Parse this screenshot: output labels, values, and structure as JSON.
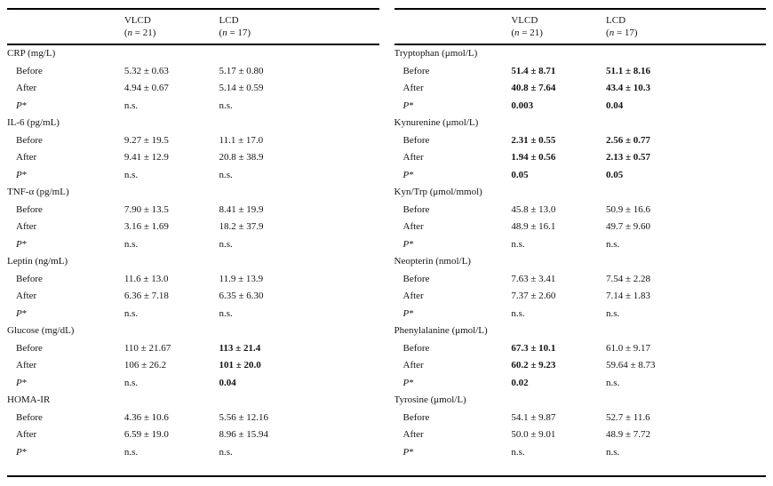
{
  "page": {
    "background_color": "#ffffff",
    "text_color": "#141414",
    "rule_color": "#000000"
  },
  "tables": [
    {
      "name": "inflammation-metabolic-parameters-table",
      "columns": [
        {
          "label": "VLCD",
          "sub_pre": "(",
          "sub_var": "n",
          "sub_post": " = 21)"
        },
        {
          "label": "LCD",
          "sub_pre": "(",
          "sub_var": "n",
          "sub_post": " = 17)"
        }
      ],
      "sections": [
        {
          "label": "CRP (mg/L)",
          "rows": [
            {
              "label": "Before",
              "cells": [
                {
                  "text": "5.32 ± 0.63",
                  "bold": false
                },
                {
                  "text": "5.17 ± 0.80",
                  "bold": false
                }
              ]
            },
            {
              "label": "After",
              "cells": [
                {
                  "text": "4.94 ± 0.67",
                  "bold": false
                },
                {
                  "text": "5.14 ± 0.59",
                  "bold": false
                }
              ]
            },
            {
              "label_var": "P",
              "label_post": "*",
              "cells": [
                {
                  "text": "n.s.",
                  "bold": false
                },
                {
                  "text": "n.s.",
                  "bold": false
                }
              ]
            }
          ]
        },
        {
          "label": "IL-6 (pg/mL)",
          "rows": [
            {
              "label": "Before",
              "cells": [
                {
                  "text": "9.27 ± 19.5",
                  "bold": false
                },
                {
                  "text": "11.1 ± 17.0",
                  "bold": false
                }
              ]
            },
            {
              "label": "After",
              "cells": [
                {
                  "text": "9.41 ± 12.9",
                  "bold": false
                },
                {
                  "text": "20.8 ± 38.9",
                  "bold": false
                }
              ]
            },
            {
              "label_var": "P",
              "label_post": "*",
              "cells": [
                {
                  "text": "n.s.",
                  "bold": false
                },
                {
                  "text": "n.s.",
                  "bold": false
                }
              ]
            }
          ]
        },
        {
          "label": "TNF-α (pg/mL)",
          "rows": [
            {
              "label": "Before",
              "cells": [
                {
                  "text": "7.90 ± 13.5",
                  "bold": false
                },
                {
                  "text": "8.41 ± 19.9",
                  "bold": false
                }
              ]
            },
            {
              "label": "After",
              "cells": [
                {
                  "text": "3.16 ± 1.69",
                  "bold": false
                },
                {
                  "text": "18.2 ± 37.9",
                  "bold": false
                }
              ]
            },
            {
              "label_var": "P",
              "label_post": "*",
              "cells": [
                {
                  "text": "n.s.",
                  "bold": false
                },
                {
                  "text": "n.s.",
                  "bold": false
                }
              ]
            }
          ]
        },
        {
          "label": "Leptin (ng/mL)",
          "rows": [
            {
              "label": "Before",
              "cells": [
                {
                  "text": "11.6 ± 13.0",
                  "bold": false
                },
                {
                  "text": "11.9 ± 13.9",
                  "bold": false
                }
              ]
            },
            {
              "label": "After",
              "cells": [
                {
                  "text": "6.36 ± 7.18",
                  "bold": false
                },
                {
                  "text": "6.35 ± 6.30",
                  "bold": false
                }
              ]
            },
            {
              "label_var": "P",
              "label_post": "*",
              "cells": [
                {
                  "text": "n.s.",
                  "bold": false
                },
                {
                  "text": "n.s.",
                  "bold": false
                }
              ]
            }
          ]
        },
        {
          "label": "Glucose (mg/dL)",
          "rows": [
            {
              "label": "Before",
              "cells": [
                {
                  "text": "110 ± 21.67",
                  "bold": false
                },
                {
                  "text": "113 ± 21.4",
                  "bold": true
                }
              ]
            },
            {
              "label": "After",
              "cells": [
                {
                  "text": "106 ± 26.2",
                  "bold": false
                },
                {
                  "text": "101 ± 20.0",
                  "bold": true
                }
              ]
            },
            {
              "label_var": "P",
              "label_post": "*",
              "cells": [
                {
                  "text": "n.s.",
                  "bold": false
                },
                {
                  "text": "0.04",
                  "bold": true
                }
              ]
            }
          ]
        },
        {
          "label": "HOMA-IR",
          "rows": [
            {
              "label": "Before",
              "cells": [
                {
                  "text": "4.36 ± 10.6",
                  "bold": false
                },
                {
                  "text": "5.56 ± 12.16",
                  "bold": false
                }
              ]
            },
            {
              "label": "After",
              "cells": [
                {
                  "text": "6.59 ± 19.0",
                  "bold": false
                },
                {
                  "text": "8.96 ± 15.94",
                  "bold": false
                }
              ]
            },
            {
              "label_var": "P",
              "label_post": "*",
              "cells": [
                {
                  "text": "n.s.",
                  "bold": false
                },
                {
                  "text": "n.s.",
                  "bold": false
                }
              ]
            }
          ]
        }
      ]
    },
    {
      "name": "amino-acid-parameters-table",
      "columns": [
        {
          "label": "VLCD",
          "sub_pre": "(",
          "sub_var": "n",
          "sub_post": " = 21)"
        },
        {
          "label": "LCD",
          "sub_pre": "(",
          "sub_var": "n",
          "sub_post": " = 17)"
        }
      ],
      "sections": [
        {
          "label": "Tryptophan (μmol/L)",
          "rows": [
            {
              "label": "Before",
              "cells": [
                {
                  "text": "51.4 ± 8.71",
                  "bold": true
                },
                {
                  "text": "51.1 ± 8.16",
                  "bold": true
                }
              ]
            },
            {
              "label": "After",
              "cells": [
                {
                  "text": "40.8 ± 7.64",
                  "bold": true
                },
                {
                  "text": "43.4 ± 10.3",
                  "bold": true
                }
              ]
            },
            {
              "label_var": "P",
              "label_post": "*",
              "cells": [
                {
                  "text": "0.003",
                  "bold": true
                },
                {
                  "text": "0.04",
                  "bold": true
                }
              ]
            }
          ]
        },
        {
          "label": "Kynurenine (μmol/L)",
          "rows": [
            {
              "label": "Before",
              "cells": [
                {
                  "text": "2.31 ± 0.55",
                  "bold": true
                },
                {
                  "text": "2.56 ± 0.77",
                  "bold": true
                }
              ]
            },
            {
              "label": "After",
              "cells": [
                {
                  "text": "1.94 ± 0.56",
                  "bold": true
                },
                {
                  "text": "2.13 ± 0.57",
                  "bold": true
                }
              ]
            },
            {
              "label_var": "P",
              "label_post": "*",
              "cells": [
                {
                  "text": "0.05",
                  "bold": true
                },
                {
                  "text": "0.05",
                  "bold": true
                }
              ]
            }
          ]
        },
        {
          "label": "Kyn/Trp (μmol/mmol)",
          "rows": [
            {
              "label": "Before",
              "cells": [
                {
                  "text": "45.8 ± 13.0",
                  "bold": false
                },
                {
                  "text": "50.9 ± 16.6",
                  "bold": false
                }
              ]
            },
            {
              "label": "After",
              "cells": [
                {
                  "text": "48.9 ± 16.1",
                  "bold": false
                },
                {
                  "text": "49.7 ± 9.60",
                  "bold": false
                }
              ]
            },
            {
              "label_var": "P",
              "label_post": "*",
              "cells": [
                {
                  "text": "n.s.",
                  "bold": false
                },
                {
                  "text": "n.s.",
                  "bold": false
                }
              ]
            }
          ]
        },
        {
          "label": "Neopterin (nmol/L)",
          "rows": [
            {
              "label": "Before",
              "cells": [
                {
                  "text": "7.63 ± 3.41",
                  "bold": false
                },
                {
                  "text": "7.54 ± 2.28",
                  "bold": false
                }
              ]
            },
            {
              "label": "After",
              "cells": [
                {
                  "text": "7.37 ± 2.60",
                  "bold": false
                },
                {
                  "text": "7.14 ± 1.83",
                  "bold": false
                }
              ]
            },
            {
              "label_var": "P",
              "label_post": "*",
              "cells": [
                {
                  "text": "n.s.",
                  "bold": false
                },
                {
                  "text": "n.s.",
                  "bold": false
                }
              ]
            }
          ]
        },
        {
          "label": "Phenylalanine (μmol/L)",
          "rows": [
            {
              "label": "Before",
              "cells": [
                {
                  "text": "67.3 ± 10.1",
                  "bold": true
                },
                {
                  "text": "61.0 ± 9.17",
                  "bold": false
                }
              ]
            },
            {
              "label": "After",
              "cells": [
                {
                  "text": "60.2 ± 9.23",
                  "bold": true
                },
                {
                  "text": "59.64 ± 8.73",
                  "bold": false
                }
              ]
            },
            {
              "label_var": "P",
              "label_post": "*",
              "cells": [
                {
                  "text": "0.02",
                  "bold": true
                },
                {
                  "text": "n.s.",
                  "bold": false
                }
              ]
            }
          ]
        },
        {
          "label": "Tyrosine (μmol/L)",
          "rows": [
            {
              "label": "Before",
              "cells": [
                {
                  "text": "54.1 ± 9.87",
                  "bold": false
                },
                {
                  "text": "52.7 ± 11.6",
                  "bold": false
                }
              ]
            },
            {
              "label": "After",
              "cells": [
                {
                  "text": "50.0 ± 9.01",
                  "bold": false
                },
                {
                  "text": "48.9 ± 7.72",
                  "bold": false
                }
              ]
            },
            {
              "label_var": "P",
              "label_post": "*",
              "cells": [
                {
                  "text": "n.s.",
                  "bold": false
                },
                {
                  "text": "n.s.",
                  "bold": false
                }
              ]
            }
          ]
        }
      ]
    }
  ]
}
